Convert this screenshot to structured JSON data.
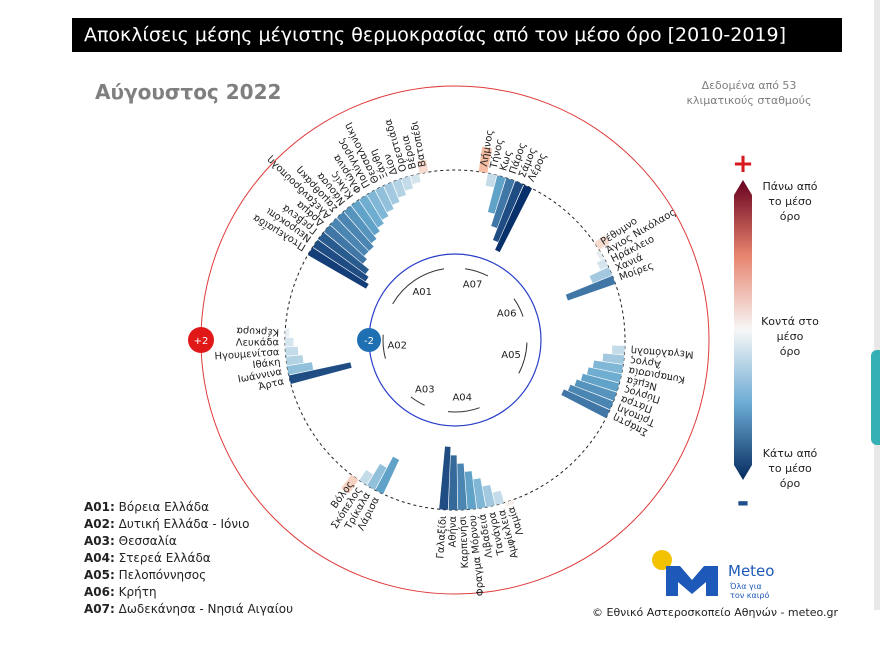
{
  "title": "Αποκλίσεις μέσης μέγιστης θερμοκρασίας από τον μέσο όρο [2010-2019]",
  "subtitle": "Αύγουστος 2022",
  "note": [
    "Δεδομένα από 53",
    "κλιματικούς σταθμούς"
  ],
  "colors": {
    "red_ring": "#e03a3a",
    "blue_ring": "#2a3fc8",
    "marker_plus": "#e01818",
    "marker_minus": "#1f6fb3"
  },
  "markers": {
    "plus": "+2",
    "minus": "-2"
  },
  "colorbar": {
    "plus_sign": "+",
    "minus_sign": "-",
    "top_label": [
      "Πάνω από",
      "το μέσο",
      "όρο"
    ],
    "mid_label": [
      "Κοντά στο",
      "μέσο",
      "όρο"
    ],
    "bottom_label": [
      "Κάτω από",
      "το μέσο",
      "όρο"
    ]
  },
  "chart_data": {
    "type": "radial-bar",
    "value_range": [
      -2,
      2
    ],
    "regions": [
      {
        "code": "A01",
        "name": "Βόρεια Ελλάδα",
        "stations": [
          "Πτολεμαΐδα",
          "Νευροκόπι",
          "Γρεβενά",
          "Δράμα",
          "Αλεξανδρούπολη",
          "Σαμοθράκη",
          "Νάουσα",
          "Κιλκίς",
          "Φλώρινα",
          "Πολύγυρος",
          "Θεσσαλονίκη",
          "Ξάνθη",
          "Δίον",
          "Ορεστιάδα",
          "Βέροια",
          "Βατοπέδι"
        ],
        "values": [
          -1.6,
          -1.5,
          -1.4,
          -1.2,
          -1.1,
          -1.1,
          -1.0,
          -0.9,
          -0.8,
          -0.7,
          -0.6,
          -0.5,
          -0.4,
          -0.3,
          -0.2,
          0.3
        ]
      },
      {
        "code": "A07",
        "name": "Δωδεκάνησα - Νησιά Αιγαίου",
        "stations": [
          "Λήμνος",
          "Τήνος",
          "Κως",
          "Πάρος",
          "Σάμος",
          "Λέρος"
        ],
        "values": [
          0.6,
          -0.3,
          -0.9,
          -1.2,
          -1.5,
          -1.7
        ]
      },
      {
        "code": "A06",
        "name": "Κρήτη",
        "stations": [
          "Ρέθυμνο",
          "Άγιος Νικόλαος",
          "Ηράκλειο",
          "Χανιά",
          "Μοίρες"
        ],
        "values": [
          0.3,
          -0.1,
          -0.2,
          -0.5,
          -1.2
        ]
      },
      {
        "code": "A05",
        "name": "Πελοπόννησος",
        "stations": [
          "Μεγαλόπολη",
          "Άργος",
          "Κυπαρισσία",
          "Νεμέα",
          "Πύργος",
          "Πάτρα",
          "Τρίπολη",
          "Σπάρτη"
        ],
        "values": [
          -0.3,
          -0.5,
          -0.7,
          -0.8,
          -0.9,
          -1.0,
          -1.1,
          -1.2
        ]
      },
      {
        "code": "A04",
        "name": "Στερεά Ελλάδα",
        "stations": [
          "Λαμία",
          "Αμφίκλεια",
          "Τανάγρα",
          "Λιβαδειά",
          "Φραγμα Μόρνου",
          "Καρπενήσι",
          "Αθήνα",
          "Γαλαξίδι"
        ],
        "values": [
          0.1,
          -0.3,
          -0.5,
          -0.7,
          -0.9,
          -1.1,
          -1.3,
          -1.5
        ]
      },
      {
        "code": "A03",
        "name": "Θεσσαλία",
        "stations": [
          "Λάρισα",
          "Τρίκαλα",
          "Σκόπελος",
          "Βόλος"
        ],
        "values": [
          -0.9,
          -0.6,
          -0.3,
          0.4
        ]
      },
      {
        "code": "A02",
        "name": "Δυτική Ελλάδα - Ιόνιο",
        "stations": [
          "Άρτα",
          "Ιωάννινα",
          "Ιθάκη",
          "Ηγουμενίτσα",
          "Λευκάδα",
          "Κέρκυρα"
        ],
        "values": [
          -1.5,
          -0.6,
          -0.4,
          -0.3,
          -0.2,
          -0.1
        ]
      }
    ]
  },
  "legend": [
    {
      "code": "A01:",
      "name": "Βόρεια Ελλάδα"
    },
    {
      "code": "A02:",
      "name": "Δυτική Ελλάδα - Ιόνιο"
    },
    {
      "code": "A03:",
      "name": "Θεσσαλία"
    },
    {
      "code": "A04:",
      "name": "Στερεά Ελλάδα"
    },
    {
      "code": "A05:",
      "name": "Πελοπόννησος"
    },
    {
      "code": "A06:",
      "name": "Κρήτη"
    },
    {
      "code": "A07:",
      "name": "Δωδεκάνησα - Νησιά Αιγαίου"
    }
  ],
  "brand": {
    "name": "Meteo",
    "tagline": [
      "Όλα για",
      "τον καιρό"
    ],
    "colors": {
      "blue": "#1d59b8",
      "yellow": "#f2c200"
    }
  },
  "copyright": "© Εθνικό Αστεροσκοπείο Αθηνών - meteo.gr"
}
